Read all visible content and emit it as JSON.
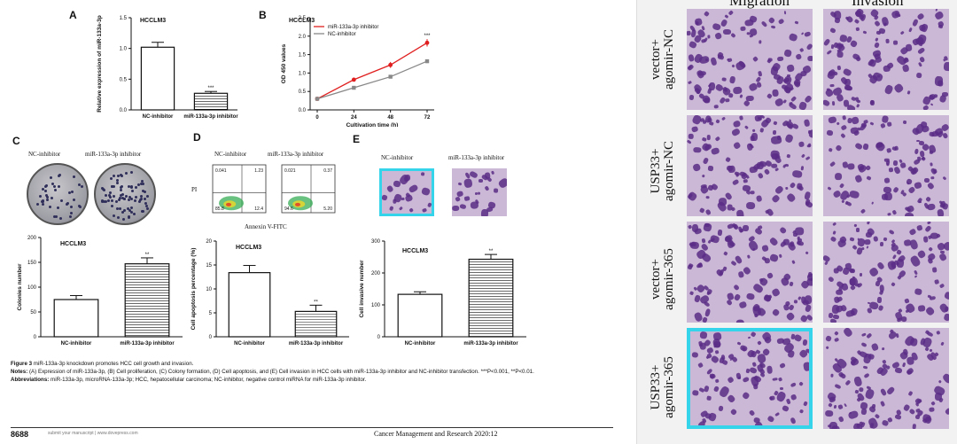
{
  "panels": {
    "A": {
      "letter": "A",
      "title": "HCCLM3",
      "ylabel": "Relative expression\nof miR-133a-3p",
      "ytick_labels": [
        "0.0",
        "0.5",
        "1.0",
        "1.5"
      ],
      "sig": "***"
    },
    "B": {
      "letter": "B",
      "title": "HCCLM3",
      "legend": [
        "miR-133a-3p inhibitor",
        "NC-inhibitor"
      ],
      "ylabel": "OD 450 values",
      "xlabel": "Cultivation time (h)",
      "sig": "***"
    },
    "C": {
      "letter": "C",
      "dish_labels": [
        "NC-inhibitor",
        "miR-133a-3p inhibitor"
      ],
      "title": "HCCLM3",
      "ylabel": "Colonies number",
      "sig": "**"
    },
    "D": {
      "letter": "D",
      "plot_labels": [
        "NC-inhibitor",
        "miR-133a-3p inhibitor"
      ],
      "y_axis": "PI",
      "x_axis": "Annexin V-FITC",
      "quadrants": [
        [
          "0.041",
          "1.23",
          "85.8",
          "12.4"
        ],
        [
          "0.021",
          "0.37",
          "94.6",
          "5.20"
        ]
      ],
      "title": "HCCLM3",
      "ylabel": "Cell apoptosis percentage (%)",
      "sig": "**"
    },
    "E": {
      "letter": "E",
      "image_labels": [
        "NC-inhibitor",
        "miR-133a-3p inhibitor"
      ],
      "title": "HCCLM3",
      "ylabel": "Cell invasive number",
      "sig": "**"
    }
  },
  "chart_data": [
    {
      "id": "A",
      "type": "bar",
      "categories": [
        "NC-inhibitor",
        "miR-133a-3p inhibitor"
      ],
      "values": [
        1.02,
        0.27
      ],
      "errors": [
        0.08,
        0.03
      ],
      "ylim": [
        0,
        1.5
      ],
      "yticks": [
        0,
        0.5,
        1.0,
        1.5
      ],
      "ylabel": "Relative expression of miR-133a-3p",
      "title": "HCCLM3"
    },
    {
      "id": "B",
      "type": "line",
      "x": [
        0,
        24,
        48,
        72
      ],
      "xticks": [
        0,
        24,
        48,
        72
      ],
      "ylim": [
        0,
        2.5
      ],
      "yticks": [
        0,
        0.5,
        1.0,
        1.5,
        2.0,
        2.5
      ],
      "series": [
        {
          "name": "miR-133a-3p inhibitor",
          "values": [
            0.3,
            0.82,
            1.22,
            1.82
          ],
          "errors": [
            0.02,
            0.05,
            0.08,
            0.1
          ],
          "color": "#e02020"
        },
        {
          "name": "NC-inhibitor",
          "values": [
            0.3,
            0.6,
            0.9,
            1.32
          ],
          "errors": [
            0.02,
            0.03,
            0.04,
            0.05
          ],
          "color": "#888888"
        }
      ],
      "xlabel": "Cultivation time (h)",
      "ylabel": "OD 450 values",
      "title": "HCCLM3"
    },
    {
      "id": "C",
      "type": "bar",
      "categories": [
        "NC-inhibitor",
        "miR-133a-3p inhibitor"
      ],
      "values": [
        75,
        147
      ],
      "errors": [
        8,
        12
      ],
      "ylim": [
        0,
        200
      ],
      "yticks": [
        0,
        50,
        100,
        150,
        200
      ],
      "ylabel": "Colonies number",
      "title": "HCCLM3"
    },
    {
      "id": "D",
      "type": "bar",
      "categories": [
        "NC-inhibitor",
        "miR-133a-3p inhibitor"
      ],
      "values": [
        13.4,
        5.3
      ],
      "errors": [
        1.5,
        1.3
      ],
      "ylim": [
        0,
        20
      ],
      "yticks": [
        0,
        5,
        10,
        15,
        20
      ],
      "ylabel": "Cell apoptosis percentage (%)",
      "title": "HCCLM3"
    },
    {
      "id": "E",
      "type": "bar",
      "categories": [
        "NC-inhibitor",
        "miR-133a-3p inhibitor"
      ],
      "values": [
        133,
        243
      ],
      "errors": [
        8,
        15
      ],
      "ylim": [
        0,
        300
      ],
      "yticks": [
        0,
        100,
        200,
        300
      ],
      "ylabel": "Cell invasive number",
      "title": "HCCLM3"
    }
  ],
  "caption": {
    "figure": "Figure 3",
    "title": " miR-133a-3p knockdown promotes HCC cell growth and invasion.",
    "notes_label": "Notes:",
    "notes": " (A) Expression of miR-133a-3p, (B) Cell proliferation, (C) Colony formation, (D) Cell apoptosis, and (E) Cell invasion in HCC cells with miR-133a-3p inhibitor and NC-inhibitor transfection. ***P<0.001, **P<0.01.",
    "abbr_label": "Abbreviations:",
    "abbr": " miR-133a-3p, microRNA-133a-3p; HCC, hepatocellular carcinoma; NC-inhibitor, negative control miRNA for miR-133a-3p inhibitor."
  },
  "footer": {
    "page_number": "8688",
    "submit": "submit your manuscript | www.dovepress.com",
    "journal": "Cancer Management and Research 2020:12"
  },
  "side": {
    "columns": [
      "Migration",
      "Invasion"
    ],
    "rows": [
      {
        "line1": "vector+",
        "line2": "agomir-NC"
      },
      {
        "line1": "USP33+",
        "line2": "agomir-NC"
      },
      {
        "line1": "vector+",
        "line2": "agomir-365"
      },
      {
        "line1": "USP33+",
        "line2": "agomir-365"
      }
    ]
  }
}
